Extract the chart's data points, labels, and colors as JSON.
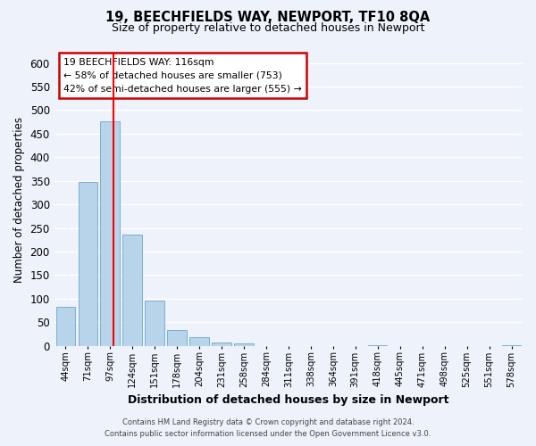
{
  "title": "19, BEECHFIELDS WAY, NEWPORT, TF10 8QA",
  "subtitle": "Size of property relative to detached houses in Newport",
  "xlabel": "Distribution of detached houses by size in Newport",
  "ylabel": "Number of detached properties",
  "bar_color": "#b8d4ea",
  "bar_edge_color": "#7aafd4",
  "vline_color": "red",
  "vline_x": 116,
  "bins": [
    44,
    71,
    97,
    124,
    151,
    178,
    204,
    231,
    258,
    284,
    311,
    338,
    364,
    391,
    418,
    445,
    471,
    498,
    525,
    551,
    578
  ],
  "bin_labels": [
    "44sqm",
    "71sqm",
    "97sqm",
    "124sqm",
    "151sqm",
    "178sqm",
    "204sqm",
    "231sqm",
    "258sqm",
    "284sqm",
    "311sqm",
    "338sqm",
    "364sqm",
    "391sqm",
    "418sqm",
    "445sqm",
    "471sqm",
    "498sqm",
    "525sqm",
    "551sqm",
    "578sqm"
  ],
  "counts": [
    83,
    348,
    477,
    236,
    96,
    34,
    18,
    8,
    5,
    0,
    0,
    0,
    0,
    0,
    1,
    0,
    0,
    0,
    0,
    0,
    1
  ],
  "ylim": [
    0,
    620
  ],
  "yticks": [
    0,
    50,
    100,
    150,
    200,
    250,
    300,
    350,
    400,
    450,
    500,
    550,
    600
  ],
  "annotation_title": "19 BEECHFIELDS WAY: 116sqm",
  "annotation_line1": "← 58% of detached houses are smaller (753)",
  "annotation_line2": "42% of semi-detached houses are larger (555) →",
  "footer1": "Contains HM Land Registry data © Crown copyright and database right 2024.",
  "footer2": "Contains public sector information licensed under the Open Government Licence v3.0.",
  "background_color": "#eef2fb",
  "plot_bg_color": "#eef2fb",
  "grid_color": "#ffffff"
}
